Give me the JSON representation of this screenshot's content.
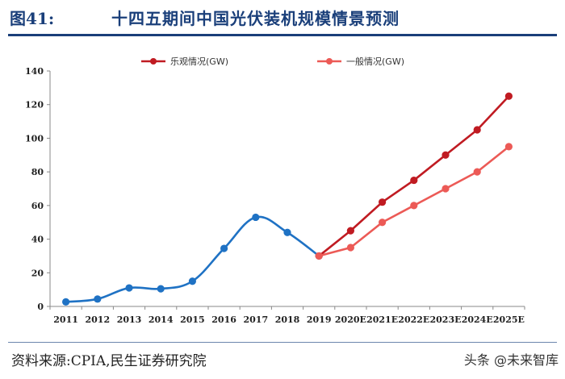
{
  "header": {
    "fig_label": "图41:",
    "title": "十四五期间中国光伏装机规模情景预测"
  },
  "footer": {
    "source": "资料来源:CPIA,民生证券研究院",
    "watermark": "头条 @未来智库"
  },
  "colors": {
    "header": "#1a3f7a",
    "historical": "#1f72c4",
    "optimistic": "#c01b22",
    "general": "#ec5a56",
    "axis": "#888888"
  },
  "chart_data": {
    "type": "line",
    "title": "",
    "xlabel": "",
    "ylabel": "",
    "ylim": [
      0,
      140
    ],
    "yticks": [
      0,
      20,
      40,
      60,
      80,
      100,
      120,
      140
    ],
    "categories": [
      "2011",
      "2012",
      "2013",
      "2014",
      "2015",
      "2016",
      "2017",
      "2018",
      "2019",
      "2020E",
      "2021E",
      "2022E",
      "2023E",
      "2024E",
      "2025E"
    ],
    "legend_position": "top",
    "series": [
      {
        "name": "",
        "color": "#1f72c4",
        "smooth": true,
        "values": [
          2.7,
          4.4,
          11,
          10.5,
          15,
          34.5,
          53,
          44,
          30,
          null,
          null,
          null,
          null,
          null,
          null
        ]
      },
      {
        "name": "乐观情况(GW)",
        "color": "#c01b22",
        "smooth": false,
        "values": [
          null,
          null,
          null,
          null,
          null,
          null,
          null,
          null,
          30,
          45,
          62,
          75,
          90,
          105,
          125
        ]
      },
      {
        "name": "一般情况(GW)",
        "color": "#ec5a56",
        "smooth": false,
        "values": [
          null,
          null,
          null,
          null,
          null,
          null,
          null,
          null,
          30,
          35,
          50,
          60,
          70,
          80,
          95
        ]
      }
    ]
  }
}
